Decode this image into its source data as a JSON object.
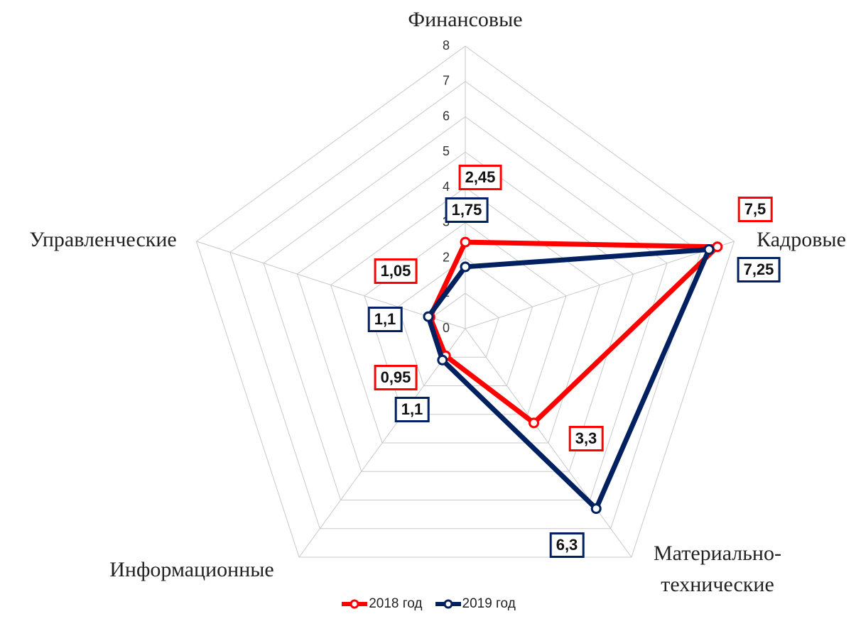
{
  "chart_data": {
    "type": "radar",
    "categories": [
      "Финансовые",
      "Кадровые",
      "Материально-технические",
      "Информационные",
      "Управленческие"
    ],
    "series": [
      {
        "name": "2018 год",
        "color": "#ff0000",
        "values": [
          2.45,
          7.5,
          3.3,
          0.95,
          1.05
        ],
        "value_labels": [
          "2,45",
          "7,5",
          "3,3",
          "0,95",
          "1,05"
        ]
      },
      {
        "name": "2019 год",
        "color": "#002060",
        "values": [
          1.75,
          7.25,
          6.3,
          1.1,
          1.1
        ],
        "value_labels": [
          "1,75",
          "7,25",
          "6,3",
          "1,1",
          "1,1"
        ]
      }
    ],
    "ylim": [
      0,
      8
    ],
    "yticks": [
      0,
      1,
      2,
      3,
      4,
      5,
      6,
      7,
      8
    ],
    "grid": true,
    "legend": "bottom"
  }
}
